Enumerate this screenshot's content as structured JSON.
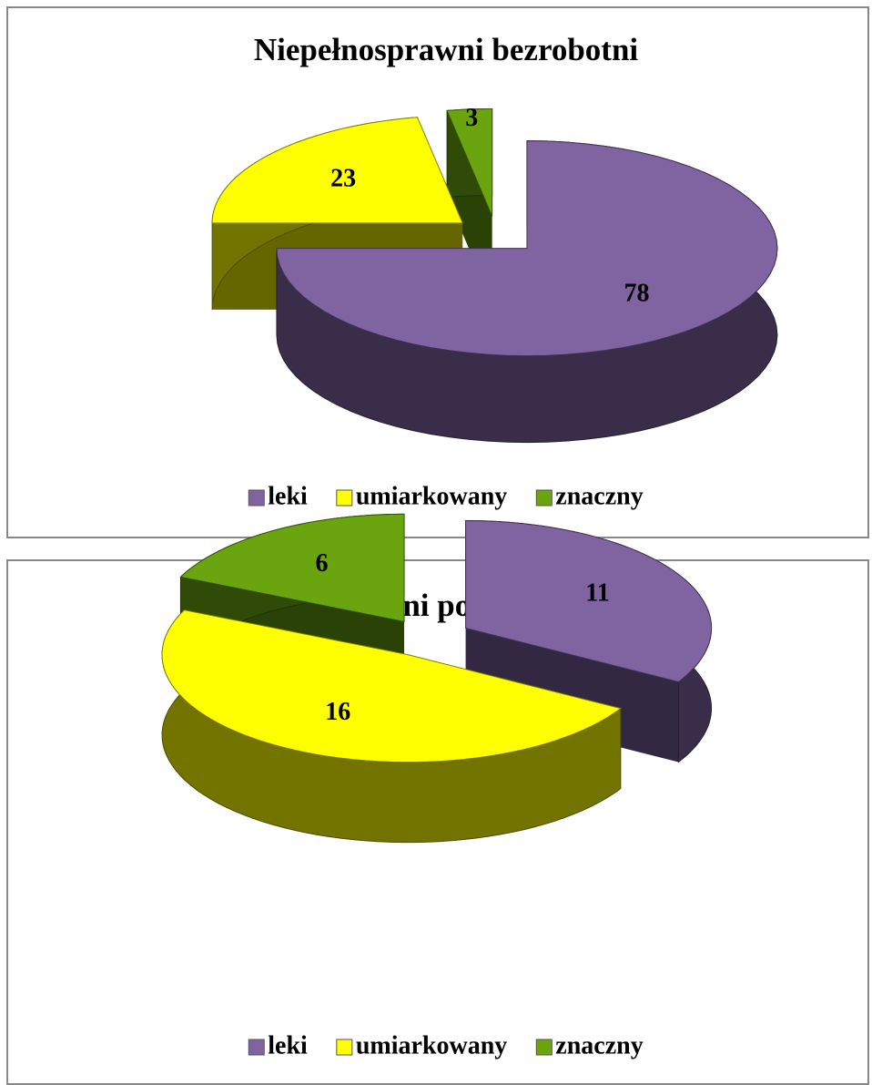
{
  "chart_data": [
    {
      "type": "pie",
      "title": "Niepełnosprawni bezrobotni",
      "categories": [
        "leki",
        "umiarkowany",
        "znaczny"
      ],
      "values": [
        78,
        23,
        3
      ],
      "colors": [
        "#8064a2",
        "#ffff00",
        "#6aa50f"
      ],
      "legend": "bottom"
    },
    {
      "type": "pie",
      "title": "Niepełnosprawni poszukujący pracy",
      "categories": [
        "leki",
        "umiarkowany",
        "znaczny"
      ],
      "values": [
        11,
        16,
        6
      ],
      "colors": [
        "#8064a2",
        "#ffff00",
        "#6aa50f"
      ],
      "legend": "bottom"
    }
  ]
}
